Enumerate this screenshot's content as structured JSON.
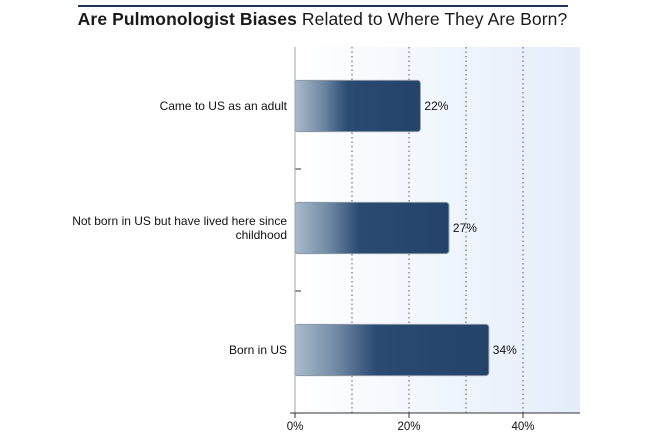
{
  "title_bold": "Are Pulmonologist Biases",
  "title_rest": "Related to Where They Are Born?",
  "chart_data": {
    "type": "bar",
    "orientation": "horizontal",
    "title": "Are Pulmonologist Biases Related to Where They Are Born?",
    "categories": [
      [
        "Came to US as an adult"
      ],
      [
        "Not born in US but have lived here since",
        "childhood"
      ],
      [
        "Born in US"
      ]
    ],
    "values": [
      22,
      27,
      34
    ],
    "value_labels": [
      "22%",
      "27%",
      "34%"
    ],
    "xlim": [
      0,
      50
    ],
    "x_ticks": [
      0,
      20,
      40
    ],
    "x_tick_labels": [
      "0%",
      "20%",
      "40%"
    ],
    "grid": "dotted vertical lines every 10%",
    "colors": {
      "bar_dark": "#24436a",
      "bar_light": "#a9bccb",
      "plot_bg_left": "#ffffff",
      "plot_bg_right": "#e3edfb",
      "grid": "#4a5a6a"
    }
  }
}
